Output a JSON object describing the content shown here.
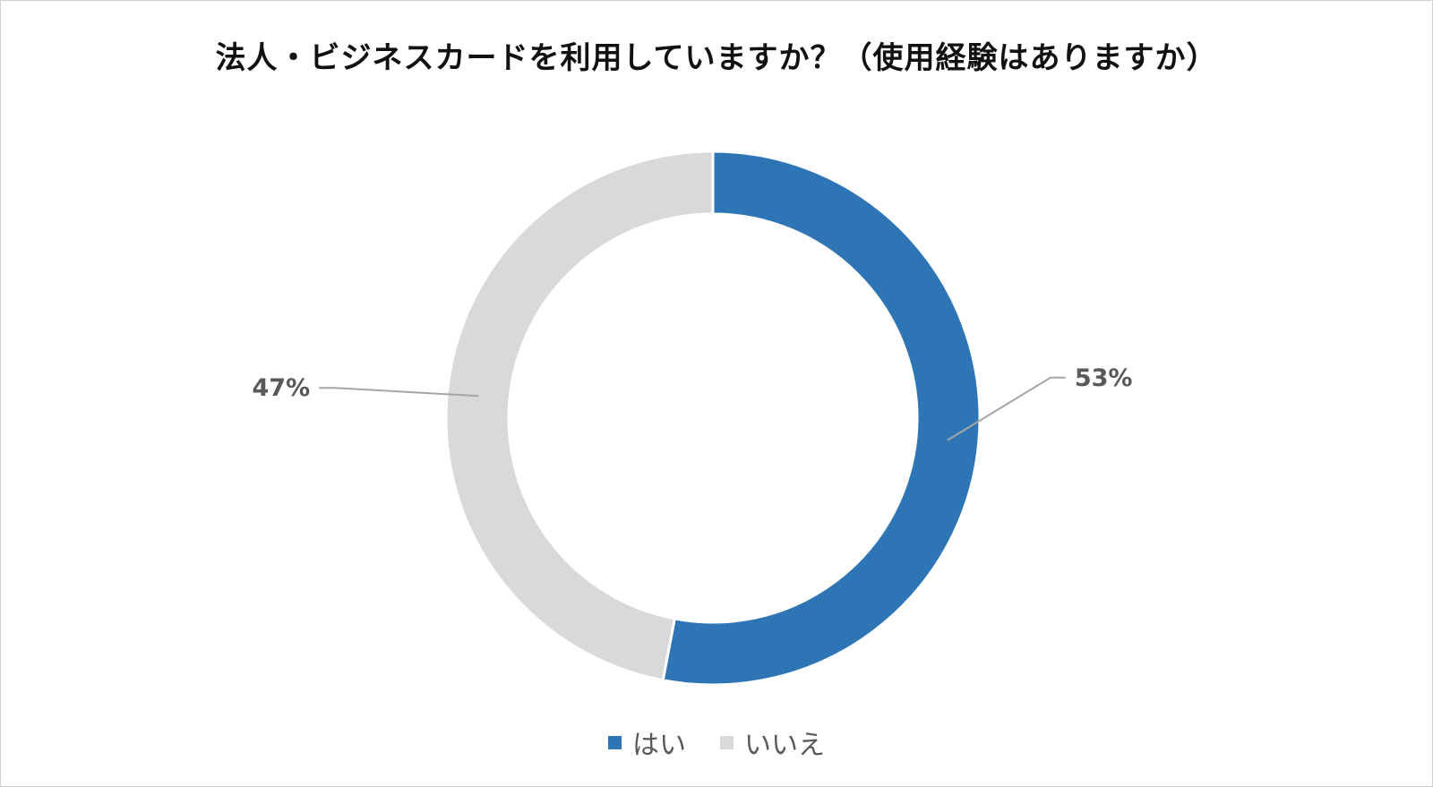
{
  "chart_data": {
    "type": "pie",
    "variant": "donut",
    "title": "法人・ビジネスカードを利用していますか？（使用経験はありますか）",
    "categories": [
      "はい",
      "いいえ"
    ],
    "values": [
      53,
      47
    ],
    "data_labels": [
      "53%",
      "47%"
    ],
    "colors": [
      "#2E75B6",
      "#D9D9D9"
    ],
    "start_angle_deg": 0,
    "direction": "clockwise",
    "legend_position": "bottom"
  }
}
